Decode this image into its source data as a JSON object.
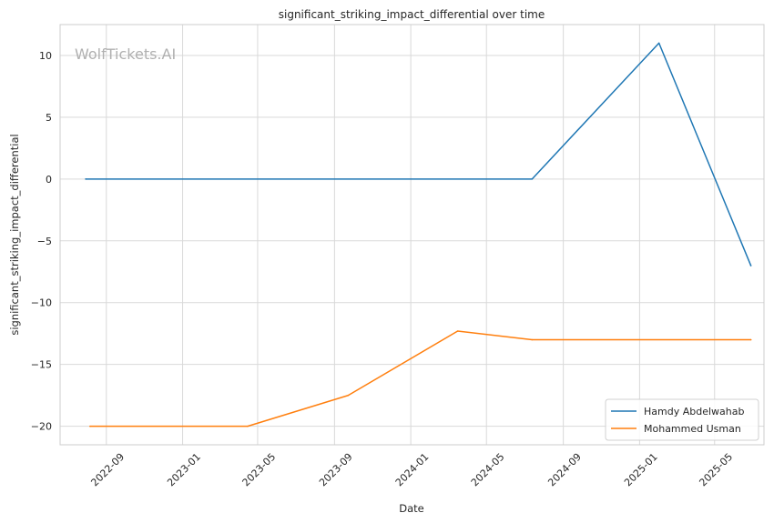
{
  "chart_data": {
    "type": "line",
    "title": "significant_striking_impact_differential over time",
    "xlabel": "Date",
    "ylabel": "significant_striking_impact_differential",
    "watermark": "WolfTickets.AI",
    "x_axis_type": "date",
    "xlim": [
      "2022-06-19",
      "2025-07-19"
    ],
    "ylim": [
      -21.5,
      12.5
    ],
    "x_ticks": [
      "2022-09",
      "2023-01",
      "2023-05",
      "2023-09",
      "2024-01",
      "2024-05",
      "2024-09",
      "2025-01",
      "2025-05"
    ],
    "y_ticks": [
      10,
      5,
      0,
      -5,
      -10,
      -15,
      -20
    ],
    "y_tick_labels": [
      "10",
      "5",
      "0",
      "−5",
      "−10",
      "−15",
      "−20"
    ],
    "grid": true,
    "legend_position": "lower right",
    "series": [
      {
        "name": "Hamdy Abdelwahab",
        "color": "#1f77b4",
        "points": [
          {
            "x": "2022-07-30",
            "y": 0
          },
          {
            "x": "2024-07-13",
            "y": 0
          },
          {
            "x": "2025-02-01",
            "y": 11
          },
          {
            "x": "2025-06-28",
            "y": -7
          }
        ]
      },
      {
        "name": "Mohammed Usman",
        "color": "#ff7f0e",
        "points": [
          {
            "x": "2022-08-06",
            "y": -20
          },
          {
            "x": "2023-04-15",
            "y": -20
          },
          {
            "x": "2023-09-23",
            "y": -17.5
          },
          {
            "x": "2024-03-16",
            "y": -12.3
          },
          {
            "x": "2024-07-13",
            "y": -13
          },
          {
            "x": "2025-06-28",
            "y": -13
          }
        ]
      }
    ]
  }
}
